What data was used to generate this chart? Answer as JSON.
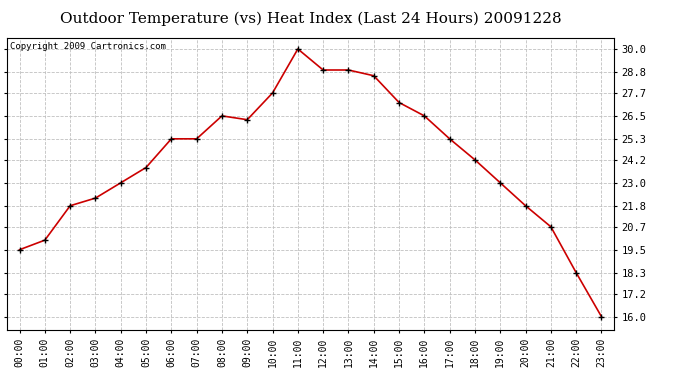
{
  "title": "Outdoor Temperature (vs) Heat Index (Last 24 Hours) 20091228",
  "copyright": "Copyright 2009 Cartronics.com",
  "hours": [
    "00:00",
    "01:00",
    "02:00",
    "03:00",
    "04:00",
    "05:00",
    "06:00",
    "07:00",
    "08:00",
    "09:00",
    "10:00",
    "11:00",
    "12:00",
    "13:00",
    "14:00",
    "15:00",
    "16:00",
    "17:00",
    "18:00",
    "19:00",
    "20:00",
    "21:00",
    "22:00",
    "23:00"
  ],
  "values": [
    19.5,
    20.0,
    21.8,
    22.2,
    23.0,
    23.8,
    25.3,
    25.3,
    26.5,
    26.3,
    27.7,
    30.0,
    28.9,
    28.9,
    28.6,
    27.2,
    26.5,
    25.3,
    24.2,
    23.0,
    21.8,
    20.7,
    18.3,
    16.0
  ],
  "line_color": "#cc0000",
  "marker": "+",
  "marker_color": "#000000",
  "bg_color": "#ffffff",
  "grid_color": "#c0c0c0",
  "yticks": [
    16.0,
    17.2,
    18.3,
    19.5,
    20.7,
    21.8,
    23.0,
    24.2,
    25.3,
    26.5,
    27.7,
    28.8,
    30.0
  ],
  "ylim": [
    15.3,
    30.6
  ],
  "title_fontsize": 11,
  "copyright_fontsize": 6.5,
  "tick_fontsize": 7,
  "ytick_fontsize": 7.5
}
